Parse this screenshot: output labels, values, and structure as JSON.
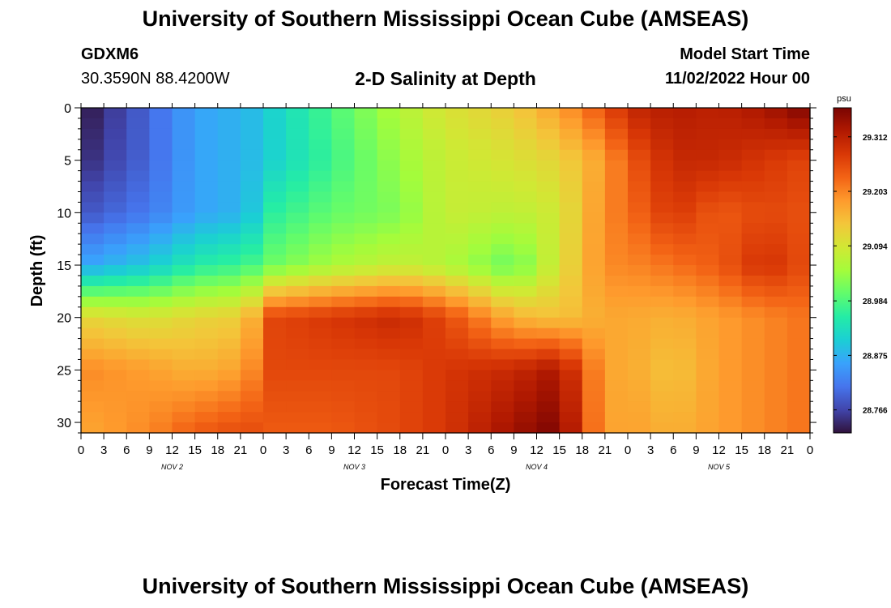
{
  "header": {
    "title": "University of Southern Mississippi Ocean Cube (AMSEAS)",
    "station_id": "GDXM6",
    "coords": "30.3590N  88.4200W",
    "product": "2-D Salinity at Depth",
    "start_label": "Model Start Time",
    "start_value": "11/02/2022 Hour 00"
  },
  "footer": {
    "title": "University of Southern Mississippi Ocean Cube (AMSEAS)"
  },
  "chart_data": {
    "type": "heatmap",
    "title": "2-D Salinity at Depth",
    "xlabel": "Forecast Time(Z)",
    "ylabel": "Depth (ft)",
    "colorbar_unit": "psu",
    "x_hours_range": [
      0,
      96
    ],
    "x_step_hours": 3,
    "y_range": [
      0,
      31
    ],
    "y_ticks": [
      0,
      5,
      10,
      15,
      20,
      25,
      30
    ],
    "x_tick_labels": [
      "0",
      "3",
      "6",
      "9",
      "12",
      "15",
      "18",
      "21",
      "0",
      "3",
      "6",
      "9",
      "12",
      "15",
      "18",
      "21",
      "0",
      "3",
      "6",
      "9",
      "12",
      "15",
      "18",
      "21",
      "0",
      "3",
      "6",
      "9",
      "12",
      "15",
      "18",
      "21",
      "0"
    ],
    "day_labels": [
      {
        "label": "NOV 2",
        "hour": 12
      },
      {
        "label": "NOV 3",
        "hour": 36
      },
      {
        "label": "NOV 4",
        "hour": 60
      },
      {
        "label": "NOV 5",
        "hour": 84
      }
    ],
    "colorbar_ticks": [
      29.312,
      29.203,
      29.094,
      28.984,
      28.875,
      28.766
    ],
    "colorbar_range": [
      28.72,
      29.37
    ],
    "colormap": [
      "#30123b",
      "#4145ab",
      "#4675ed",
      "#39a2fc",
      "#1bcfd4",
      "#24eca6",
      "#61fc6c",
      "#a4fc3b",
      "#d1e834",
      "#f3c63a",
      "#fe9b2d",
      "#f36315",
      "#d93806",
      "#b11901",
      "#7a0402"
    ],
    "salinity_grid": {
      "depths_ft": [
        0,
        5,
        10,
        15,
        20,
        25,
        31
      ],
      "hours": [
        0,
        9,
        15,
        22,
        24,
        33,
        42,
        48,
        57,
        63,
        69,
        72,
        78,
        84,
        90,
        96
      ],
      "values": [
        [
          28.72,
          28.8,
          28.86,
          28.88,
          28.9,
          28.98,
          29.06,
          29.1,
          29.13,
          29.18,
          29.25,
          29.3,
          29.32,
          29.31,
          29.33,
          29.37
        ],
        [
          28.74,
          28.8,
          28.86,
          28.88,
          28.9,
          28.97,
          29.04,
          29.08,
          29.1,
          29.12,
          29.18,
          29.24,
          29.3,
          29.3,
          29.28,
          29.26
        ],
        [
          28.78,
          28.82,
          28.86,
          28.88,
          28.95,
          29.0,
          29.02,
          29.08,
          29.07,
          29.09,
          29.2,
          29.22,
          29.28,
          29.24,
          29.26,
          29.25
        ],
        [
          28.86,
          28.9,
          28.95,
          28.97,
          29.0,
          29.05,
          29.08,
          29.06,
          29.0,
          29.1,
          29.2,
          29.2,
          29.22,
          29.24,
          29.29,
          29.25
        ],
        [
          29.12,
          29.1,
          29.12,
          29.13,
          29.26,
          29.28,
          29.3,
          29.26,
          29.16,
          29.14,
          29.17,
          29.17,
          29.16,
          29.18,
          29.2,
          29.22
        ],
        [
          29.2,
          29.18,
          29.16,
          29.18,
          29.26,
          29.26,
          29.26,
          29.28,
          29.3,
          29.33,
          29.17,
          29.17,
          29.14,
          29.18,
          29.2,
          29.22
        ],
        [
          29.17,
          29.2,
          29.24,
          29.26,
          29.24,
          29.24,
          29.26,
          29.28,
          29.34,
          29.37,
          29.17,
          29.18,
          29.16,
          29.18,
          29.2,
          29.22
        ]
      ]
    }
  }
}
